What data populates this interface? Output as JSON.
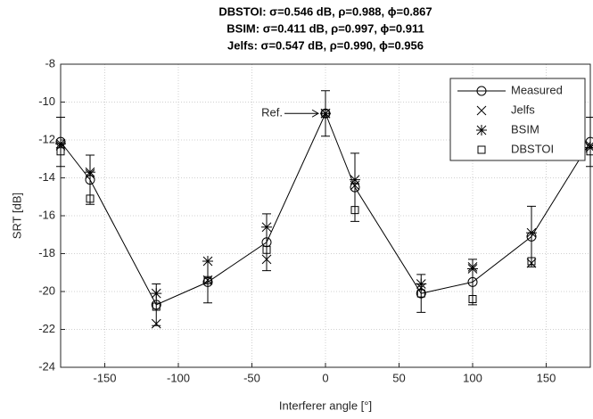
{
  "chart_data": {
    "type": "line",
    "title": [
      "DBSTOI: σ=0.546 dB, ρ=0.988, ϕ=0.867",
      "BSIM: σ=0.411 dB, ρ=0.997, ϕ=0.911",
      "Jelfs: σ=0.547 dB, ρ=0.990, ϕ=0.956"
    ],
    "xlabel": "Interferer angle [°]",
    "ylabel": "SRT [dB]",
    "x": [
      -180,
      -160,
      -115,
      -80,
      -40,
      0,
      20,
      65,
      100,
      140,
      180
    ],
    "series": [
      {
        "name": "Measured",
        "marker": "circle",
        "line": true,
        "color": "#000000",
        "values": [
          -12.1,
          -14.1,
          -20.7,
          -19.5,
          -17.4,
          -10.6,
          -14.5,
          -20.1,
          -19.5,
          -17.1,
          -12.1
        ],
        "errors": [
          1.3,
          1.3,
          1.1,
          1.1,
          1.5,
          1.2,
          1.8,
          1.0,
          1.2,
          1.6,
          1.3
        ]
      },
      {
        "name": "Jelfs",
        "marker": "x",
        "color": "#000000",
        "values": [
          -12.3,
          -13.8,
          -21.7,
          -19.4,
          -18.3,
          -10.6,
          -14.4,
          -19.8,
          -18.7,
          -18.5,
          -12.3
        ]
      },
      {
        "name": "BSIM",
        "marker": "asterisk",
        "color": "#000000",
        "values": [
          -12.2,
          -13.7,
          -20.1,
          -18.4,
          -16.6,
          -10.6,
          -14.1,
          -19.6,
          -18.8,
          -16.9,
          -12.4
        ]
      },
      {
        "name": "DBSTOI",
        "marker": "square",
        "color": "#000000",
        "values": [
          -12.6,
          -15.1,
          -20.8,
          -19.4,
          -17.8,
          -10.6,
          -15.7,
          -20.1,
          -20.4,
          -18.4,
          -12.6
        ]
      }
    ],
    "annotation": "Ref.",
    "xlim": [
      -180,
      180
    ],
    "xticks": [
      -150,
      -100,
      -50,
      0,
      50,
      100,
      150
    ],
    "ylim": [
      -24,
      -8
    ],
    "yticks": [
      -24,
      -22,
      -20,
      -18,
      -16,
      -14,
      -12,
      -10,
      -8
    ],
    "grid": true,
    "legend": "upper right"
  }
}
